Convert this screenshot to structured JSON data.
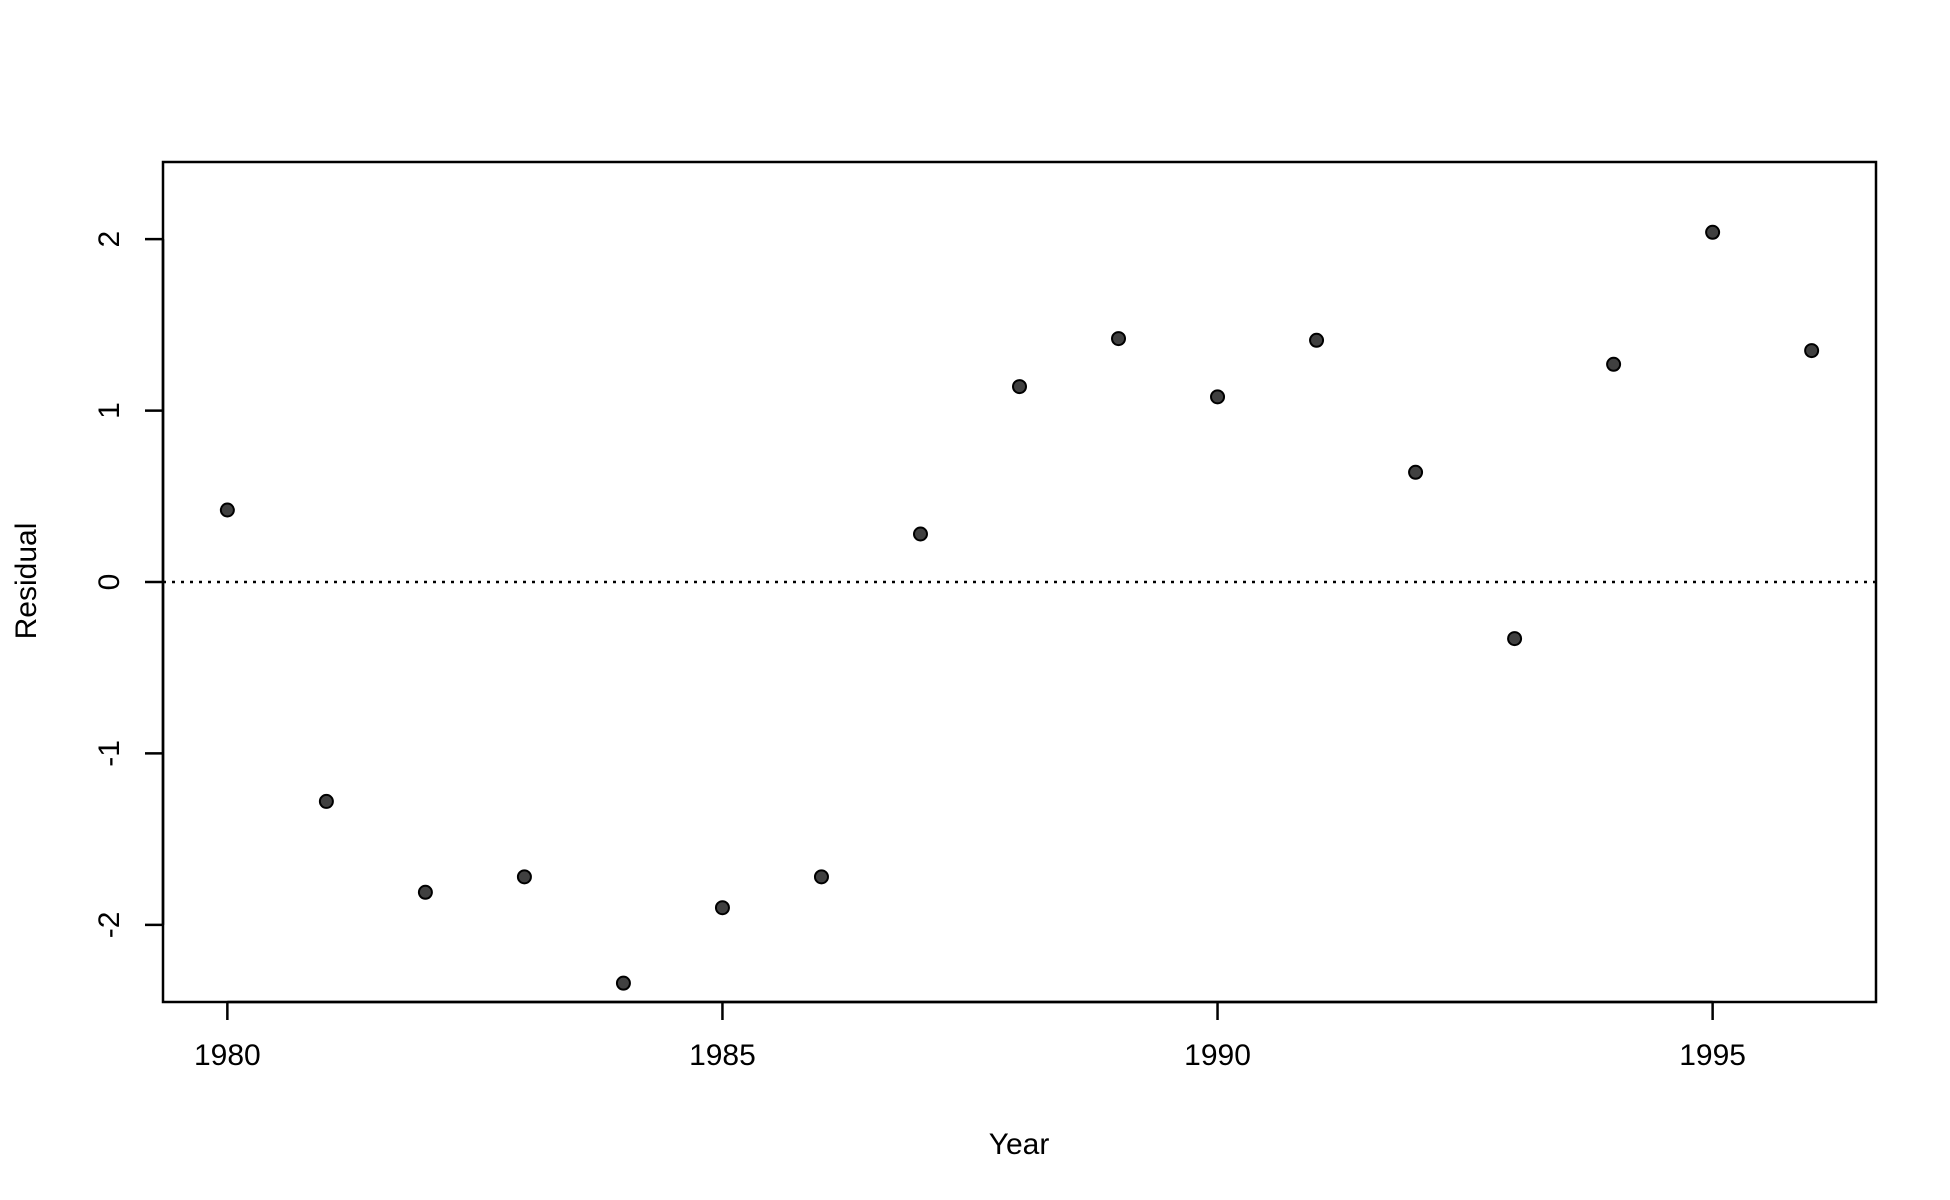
{
  "chart_data": {
    "type": "scatter",
    "xlabel": "Year",
    "ylabel": "Residual",
    "xlim": [
      1979.35,
      1996.65
    ],
    "ylim": [
      -2.45,
      2.45
    ],
    "x_ticks": [
      1980,
      1985,
      1990,
      1995
    ],
    "y_ticks": [
      -2,
      -1,
      0,
      1,
      2
    ],
    "grid": false,
    "reference_line": {
      "y": 0,
      "style": "dotted"
    },
    "points": [
      {
        "x": 1980,
        "y": 0.42
      },
      {
        "x": 1981,
        "y": -1.28
      },
      {
        "x": 1982,
        "y": -1.81
      },
      {
        "x": 1983,
        "y": -1.72
      },
      {
        "x": 1984,
        "y": -2.34
      },
      {
        "x": 1985,
        "y": -1.9
      },
      {
        "x": 1986,
        "y": -1.72
      },
      {
        "x": 1987,
        "y": 0.28
      },
      {
        "x": 1988,
        "y": 1.14
      },
      {
        "x": 1989,
        "y": 1.42
      },
      {
        "x": 1990,
        "y": 1.08
      },
      {
        "x": 1991,
        "y": 1.41
      },
      {
        "x": 1992,
        "y": 0.64
      },
      {
        "x": 1993,
        "y": -0.33
      },
      {
        "x": 1994,
        "y": 1.27
      },
      {
        "x": 1995,
        "y": 2.04
      },
      {
        "x": 1996,
        "y": 1.35
      }
    ],
    "colors": {
      "point_fill": "#404040",
      "point_stroke": "#000000",
      "axis": "#000000"
    }
  }
}
